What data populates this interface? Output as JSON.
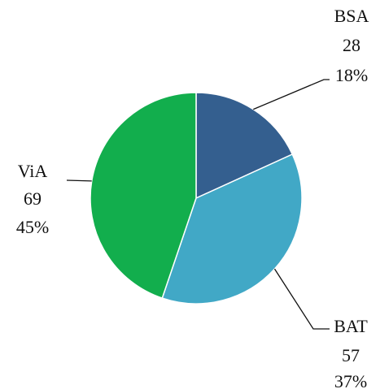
{
  "chart_data": {
    "type": "pie",
    "categories": [
      "BSA",
      "BAT",
      "ViA"
    ],
    "values": [
      28,
      57,
      69
    ],
    "percent_labels": [
      "18%",
      "37%",
      "45%"
    ],
    "colors": [
      "#345f8f",
      "#41a8c6",
      "#12ae4d"
    ],
    "start_angle": 0,
    "direction": "clockwise"
  }
}
